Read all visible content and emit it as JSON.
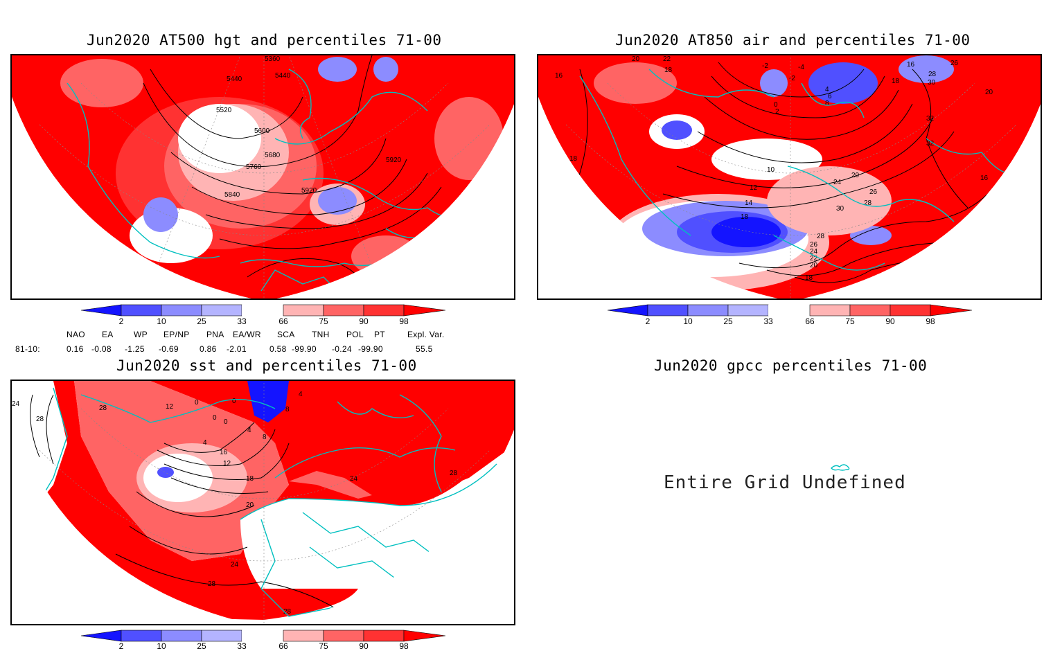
{
  "panels": {
    "hgt": {
      "title": "Jun2020 AT500 hgt and percentiles 71-00",
      "contour_labels": [
        "5360",
        "5440",
        "5440",
        "5520",
        "5600",
        "5680",
        "5760",
        "5840",
        "5920",
        "5920"
      ]
    },
    "air": {
      "title": "Jun2020 AT850 air and percentiles 71-00",
      "contour_labels": [
        "20",
        "22",
        "18",
        "16",
        "-2",
        "-4",
        "-2",
        "16",
        "26",
        "28",
        "18",
        "30",
        "4",
        "6",
        "8",
        "0",
        "2",
        "20",
        "32",
        "32",
        "18",
        "10",
        "12",
        "14",
        "20",
        "24",
        "26",
        "28",
        "30",
        "18",
        "28",
        "26",
        "24",
        "22",
        "20",
        "16",
        "16",
        "18",
        "18"
      ]
    },
    "sst": {
      "title": "Jun2020 sst and percentiles 71-00",
      "contour_labels": [
        "24",
        "28",
        "28",
        "12",
        "0",
        "0",
        "0",
        "4",
        "8",
        "4",
        "0",
        "4",
        "8",
        "12",
        "16",
        "18",
        "20",
        "24",
        "24",
        "28",
        "28",
        "28",
        "12",
        "24"
      ]
    },
    "gpcc": {
      "title": "Jun2020 gpcc percentiles 71-00",
      "message": "Entire Grid Undefined"
    }
  },
  "colorbar": {
    "levels": [
      "2",
      "10",
      "25",
      "33",
      "66",
      "75",
      "90",
      "98"
    ],
    "colors": [
      "#1414ff",
      "#5050ff",
      "#8c8cff",
      "#b4b4ff",
      "#ffffff",
      "#ffb4b4",
      "#ff6464",
      "#ff3232",
      "#ff0000"
    ]
  },
  "teleconnections": {
    "headers": [
      "NAO",
      "EA",
      "WP",
      "EP/NP",
      "PNA",
      "EA/WR",
      "SCA",
      "TNH",
      "POL",
      "PT",
      "Expl. Var."
    ],
    "row_label": "81-10:",
    "values": [
      "0.16",
      "-0.08",
      "-1.25",
      "-0.69",
      "0.86",
      "-2.01",
      "0.58",
      "-99.90",
      "-0.24",
      "-99.90",
      "55.5"
    ]
  }
}
